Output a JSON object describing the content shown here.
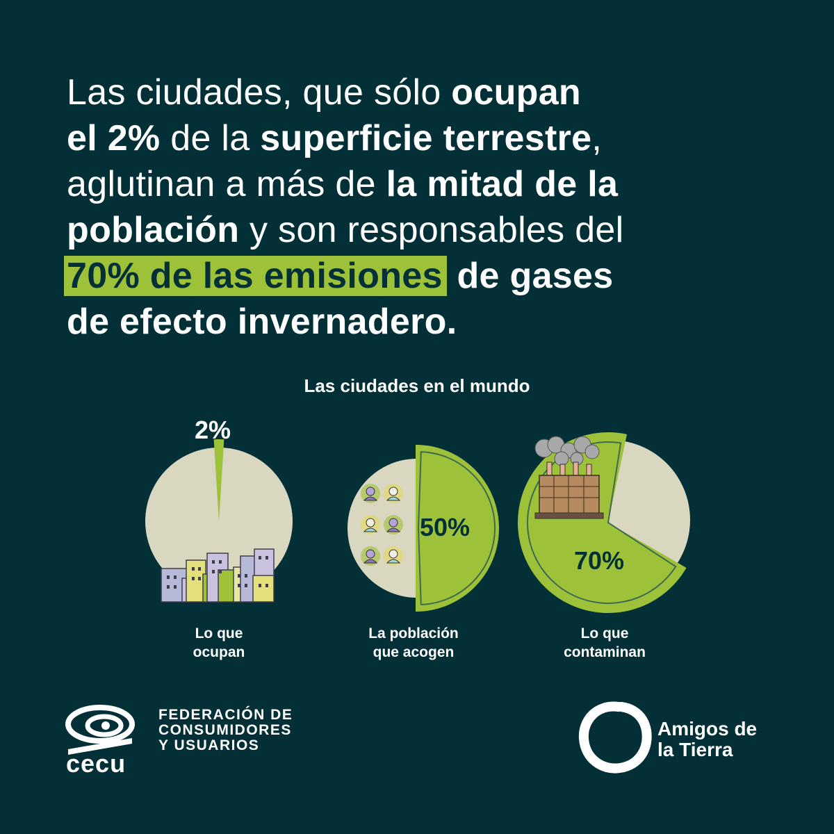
{
  "headline": {
    "l1_a": "Las ciudades, que sólo ",
    "l1_b": "ocupan",
    "l2_a": "el 2%",
    "l2_b": " de la ",
    "l2_c": "superficie terrestre",
    "l2_d": ",",
    "l3_a": "aglutinan a más de ",
    "l3_b": "la mitad de la",
    "l4_a": "población",
    "l4_b": " y son responsables del",
    "l5_a": "70% de las emisiones",
    "l5_b": " de gases",
    "l6_a": "de efecto invernadero."
  },
  "colors": {
    "background": "#032f36",
    "accent_green": "#9dc23a",
    "pie_beige": "#d9d7bf",
    "dark_text": "#032f36"
  },
  "chart_data": [
    {
      "type": "pie",
      "title": "Las ciudades en el mundo",
      "caption": "Lo que ocupan",
      "slices": [
        {
          "label": "2%",
          "value": 2
        },
        {
          "label": "",
          "value": 98
        }
      ],
      "icon": "buildings-icon"
    },
    {
      "type": "pie",
      "caption": "La población que acogen",
      "slices": [
        {
          "label": "50%",
          "value": 50
        },
        {
          "label": "",
          "value": 50
        }
      ],
      "icon": "people-icon"
    },
    {
      "type": "pie",
      "caption": "Lo que contaminan",
      "slices": [
        {
          "label": "70%",
          "value": 70
        },
        {
          "label": "",
          "value": 30
        }
      ],
      "icon": "factory-icon"
    }
  ],
  "charts_title": "Las ciudades en el mundo",
  "captions": {
    "c1_l1": "Lo que",
    "c1_l2": "ocupan",
    "c2_l1": "La población",
    "c2_l2": "que acogen",
    "c3_l1": "Lo que",
    "c3_l2": "contaminan"
  },
  "labels": {
    "p1": "2%",
    "p2": "50%",
    "p3": "70%"
  },
  "logos": {
    "cecu_mark": "cecu",
    "cecu_l1": "FEDERACIÓN DE",
    "cecu_l2": "CONSUMIDORES",
    "cecu_l3": "Y USUARIOS",
    "amigos_l1": "Amigos de",
    "amigos_l2": "la Tierra"
  }
}
